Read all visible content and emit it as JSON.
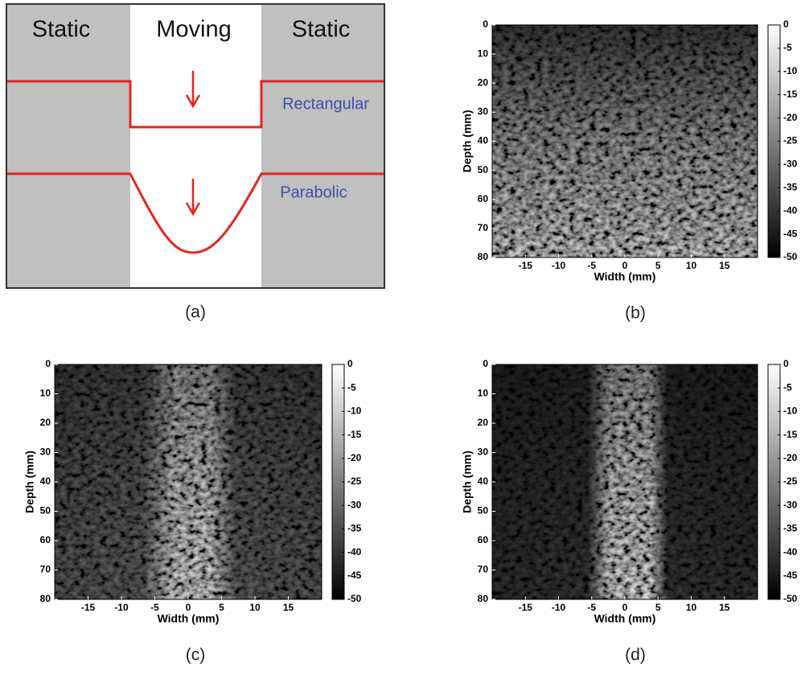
{
  "panel_a": {
    "static_left": "Static",
    "moving": "Moving",
    "static_right": "Static",
    "rectangular": "Rectangular",
    "parabolic": "Parabolic",
    "caption": "(a)"
  },
  "panels": [
    {
      "caption": "(b)",
      "x_label": "Width (mm)",
      "y_label": "Depth (mm)",
      "xlim": [
        -20,
        20
      ],
      "xticks": [
        -15,
        -10,
        -5,
        0,
        5,
        10,
        15
      ],
      "ylim": [
        0,
        80
      ],
      "yticks": [
        0,
        10,
        20,
        30,
        40,
        50,
        60,
        70,
        80
      ],
      "clim": [
        -50,
        0
      ],
      "cticks": [
        0,
        -5,
        -10,
        -15,
        -20,
        -25,
        -30,
        -35,
        -40,
        -45,
        -50
      ]
    },
    {
      "caption": "(c)",
      "x_label": "Width (mm)",
      "y_label": "Depth (mm)",
      "xlim": [
        -20,
        20
      ],
      "xticks": [
        -15,
        -10,
        -5,
        0,
        5,
        10,
        15
      ],
      "ylim": [
        0,
        80
      ],
      "yticks": [
        0,
        10,
        20,
        30,
        40,
        50,
        60,
        70,
        80
      ],
      "clim": [
        -50,
        0
      ],
      "cticks": [
        0,
        -5,
        -10,
        -15,
        -20,
        -25,
        -30,
        -35,
        -40,
        -45,
        -50
      ]
    },
    {
      "caption": "(d)",
      "x_label": "Width (mm)",
      "y_label": "Depth (mm)",
      "xlim": [
        -20,
        20
      ],
      "xticks": [
        -15,
        -10,
        -5,
        0,
        5,
        10,
        15
      ],
      "ylim": [
        0,
        80
      ],
      "yticks": [
        0,
        10,
        20,
        30,
        40,
        50,
        60,
        70,
        80
      ],
      "clim": [
        -50,
        0
      ],
      "cticks": [
        0,
        -5,
        -10,
        -15,
        -20,
        -25,
        -30,
        -35,
        -40,
        -45,
        -50
      ]
    }
  ]
}
